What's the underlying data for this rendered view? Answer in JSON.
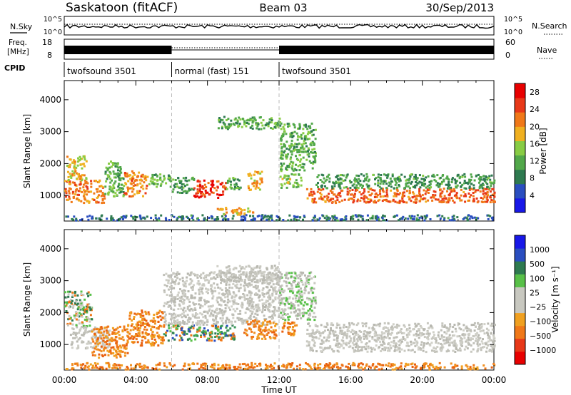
{
  "header": {
    "station": "Saskatoon (fitACF)",
    "beam": "Beam 03",
    "date": "30/Sep/2013"
  },
  "strip_labels": {
    "nsky_label": "N.Sky",
    "nsearch_label": "N.Search",
    "freq_label": "Freq.",
    "freq_unit": "[MHz]",
    "nave_label": "Nave",
    "cpid_label": "CPID",
    "nsky_ticks": [
      "10^5",
      "10^0"
    ],
    "nsearch_ticks": [
      "10^5",
      "10^0"
    ],
    "freq_ticks": [
      "18",
      "8"
    ],
    "nave_ticks": [
      "60",
      "0"
    ]
  },
  "cpid_segments": [
    {
      "label": "twofsound 3501",
      "start": 0,
      "end": 6
    },
    {
      "label": "normal (fast) 151",
      "start": 6,
      "end": 12
    },
    {
      "label": "twofsound 3501",
      "start": 12,
      "end": 24
    }
  ],
  "colors": {
    "power_scale": [
      "#1818e8",
      "#2a4ec0",
      "#2e7a50",
      "#52a84a",
      "#88cc44",
      "#f0b020",
      "#f07818",
      "#e83818",
      "#e80000"
    ],
    "velocity_scale": [
      "#e80000",
      "#e83818",
      "#f07818",
      "#f0a020",
      "#c8c8c0",
      "#c8c8c0",
      "#58c048",
      "#2e7a50",
      "#2a4ec0",
      "#1818e8"
    ]
  },
  "chart_data": [
    {
      "type": "heatmap",
      "name": "power",
      "xlabel": "",
      "ylabel": "Slant Range [km]",
      "xlim": [
        0,
        24
      ],
      "ylim": [
        200,
        4600
      ],
      "x_ticks": [
        "00:00",
        "04:00",
        "08:00",
        "12:00",
        "16:00",
        "20:00",
        "00:00"
      ],
      "y_ticks": [
        1000,
        2000,
        3000,
        4000
      ],
      "colorbar_label": "Power [dB]",
      "colorbar_ticks": [
        4,
        8,
        12,
        16,
        20,
        24,
        28
      ],
      "colorbar_range": [
        0,
        30
      ],
      "regions": [
        {
          "t0": 0.0,
          "t1": 2.2,
          "r0": 800,
          "r1": 1500,
          "value": 22
        },
        {
          "t0": 0.1,
          "t1": 1.2,
          "r0": 1500,
          "r1": 2300,
          "value": 18
        },
        {
          "t0": 2.2,
          "t1": 3.3,
          "r0": 1000,
          "r1": 2100,
          "value": 12
        },
        {
          "t0": 3.3,
          "t1": 4.6,
          "r0": 1000,
          "r1": 1800,
          "value": 22
        },
        {
          "t0": 4.6,
          "t1": 6.0,
          "r0": 1300,
          "r1": 1700,
          "value": 12
        },
        {
          "t0": 6.0,
          "t1": 7.2,
          "r0": 1100,
          "r1": 1600,
          "value": 10
        },
        {
          "t0": 7.2,
          "t1": 9.0,
          "r0": 950,
          "r1": 1500,
          "value": 27
        },
        {
          "t0": 9.0,
          "t1": 9.8,
          "r0": 1200,
          "r1": 1600,
          "value": 12
        },
        {
          "t0": 8.5,
          "t1": 10.5,
          "r0": 400,
          "r1": 650,
          "value": 20
        },
        {
          "t0": 10.2,
          "t1": 11.0,
          "r0": 1200,
          "r1": 1800,
          "value": 20
        },
        {
          "t0": 12.0,
          "t1": 13.2,
          "r0": 1250,
          "r1": 1700,
          "value": 14
        },
        {
          "t0": 8.5,
          "t1": 12.0,
          "r0": 3100,
          "r1": 3500,
          "value": 12
        },
        {
          "t0": 12.0,
          "t1": 14.0,
          "r0": 1800,
          "r1": 3300,
          "value": 12
        },
        {
          "t0": 13.5,
          "t1": 24.0,
          "r0": 800,
          "r1": 1250,
          "value": 24
        },
        {
          "t0": 14.0,
          "t1": 24.0,
          "r0": 1250,
          "r1": 1700,
          "value": 10
        },
        {
          "t0": 0.0,
          "t1": 24.0,
          "r0": 250,
          "r1": 420,
          "value": 6
        }
      ]
    },
    {
      "type": "heatmap",
      "name": "velocity",
      "xlabel": "Time UT",
      "ylabel": "Slant Range [km]",
      "xlim": [
        0,
        24
      ],
      "ylim": [
        200,
        4600
      ],
      "x_ticks": [
        "00:00",
        "04:00",
        "08:00",
        "12:00",
        "16:00",
        "20:00",
        "00:00"
      ],
      "y_ticks": [
        1000,
        2000,
        3000,
        4000
      ],
      "colorbar_label": "Velocity [m s⁻¹]",
      "colorbar_ticks": [
        "1000",
        "500",
        "100",
        "25",
        "−25",
        "−100",
        "−500",
        "−1000"
      ],
      "regions": [
        {
          "t0": 0.0,
          "t1": 1.5,
          "r0": 1600,
          "r1": 2700,
          "value": "green-orange"
        },
        {
          "t0": 0.3,
          "t1": 2.5,
          "r0": 900,
          "r1": 1600,
          "value": "grey"
        },
        {
          "t0": 1.5,
          "t1": 3.5,
          "r0": 600,
          "r1": 1600,
          "value": "orange"
        },
        {
          "t0": 3.5,
          "t1": 5.5,
          "r0": 1000,
          "r1": 2100,
          "value": "orange"
        },
        {
          "t0": 5.5,
          "t1": 9.5,
          "r0": 1150,
          "r1": 1650,
          "value": "blue-green"
        },
        {
          "t0": 5.5,
          "t1": 12.0,
          "r0": 1650,
          "r1": 3300,
          "value": "grey"
        },
        {
          "t0": 10.0,
          "t1": 11.8,
          "r0": 1200,
          "r1": 1800,
          "value": "orange"
        },
        {
          "t0": 8.5,
          "t1": 12.0,
          "r0": 3000,
          "r1": 3500,
          "value": "grey"
        },
        {
          "t0": 12.0,
          "t1": 13.0,
          "r0": 1300,
          "r1": 1750,
          "value": "orange"
        },
        {
          "t0": 12.0,
          "t1": 14.0,
          "r0": 1800,
          "r1": 3300,
          "value": "grey-green"
        },
        {
          "t0": 13.5,
          "t1": 24.0,
          "r0": 800,
          "r1": 1700,
          "value": "grey"
        },
        {
          "t0": 0.0,
          "t1": 24.0,
          "r0": 250,
          "r1": 450,
          "value": "orange"
        }
      ]
    }
  ]
}
